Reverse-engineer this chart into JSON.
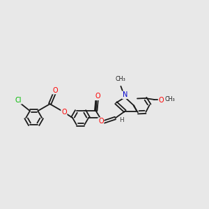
{
  "background_color": "#e8e8e8",
  "bond_color": "#1a1a1a",
  "atom_colors": {
    "O": "#ff0000",
    "N": "#0000cc",
    "Cl": "#00bb00",
    "C": "#1a1a1a",
    "H": "#444444"
  },
  "figsize": [
    3.0,
    3.0
  ],
  "dpi": 100,
  "lw": 1.3,
  "dbl_sep": 0.055
}
